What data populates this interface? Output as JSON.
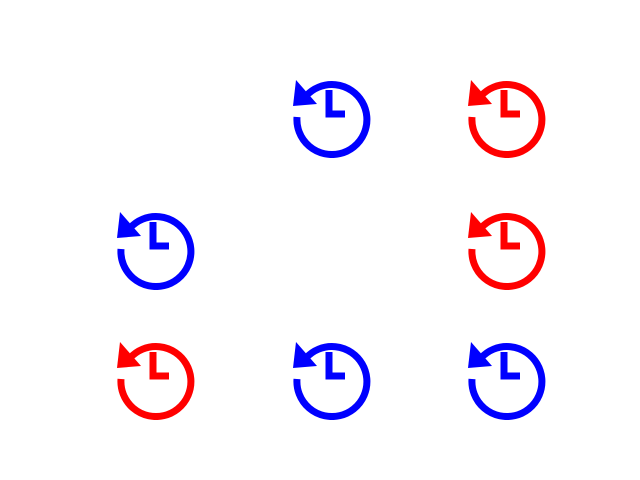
{
  "icon_name": "history-icon",
  "colors": {
    "blue": "#0000ff",
    "red": "#ff0000"
  },
  "grid": [
    [
      "empty",
      "blue",
      "red"
    ],
    [
      "blue",
      "empty",
      "red"
    ],
    [
      "red",
      "blue",
      "blue"
    ]
  ]
}
